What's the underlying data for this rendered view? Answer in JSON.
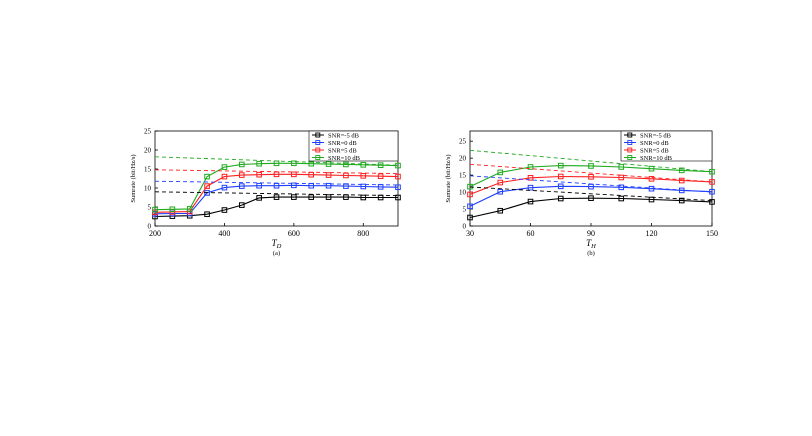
{
  "chart_data": [
    {
      "type": "line",
      "caption": "(a)",
      "xlabel": "T_D",
      "xlabel_main": "T",
      "xlabel_sub": "D",
      "ylabel": "Sumrate (bit/Hz/s)",
      "xlim": [
        200,
        900
      ],
      "ylim": [
        0,
        25
      ],
      "xticks": [
        200,
        400,
        600,
        800
      ],
      "xtick_labels": [
        "200",
        "400",
        "600",
        "800"
      ],
      "yticks": [
        0,
        5,
        10,
        15,
        20,
        25
      ],
      "ytick_labels": [
        "0",
        "5",
        "10",
        "15",
        "20",
        "25"
      ],
      "grid": false,
      "legend_position": "top-right",
      "x": [
        200,
        250,
        300,
        350,
        400,
        450,
        500,
        550,
        600,
        650,
        700,
        750,
        800,
        850,
        900
      ],
      "series": [
        {
          "name": "SNR=-5 dB",
          "color": "#000000",
          "style": "solid",
          "marker": "square",
          "values": [
            2.5,
            2.6,
            2.7,
            3.1,
            4.2,
            5.5,
            7.4,
            7.6,
            7.6,
            7.6,
            7.6,
            7.6,
            7.5,
            7.5,
            7.5
          ]
        },
        {
          "name": "SNR=0 dB",
          "color": "#1f3fff",
          "style": "solid",
          "marker": "square",
          "values": [
            3.2,
            3.3,
            3.3,
            8.7,
            10.1,
            10.5,
            10.6,
            10.6,
            10.7,
            10.6,
            10.6,
            10.5,
            10.4,
            10.3,
            10.2
          ]
        },
        {
          "name": "SNR=5 dB",
          "color": "#ff1f1f",
          "style": "solid",
          "marker": "square",
          "values": [
            3.6,
            3.7,
            3.8,
            10.5,
            13.0,
            13.4,
            13.5,
            13.6,
            13.6,
            13.5,
            13.4,
            13.3,
            13.2,
            13.1,
            13.0
          ]
        },
        {
          "name": "SNR=10 dB",
          "color": "#1faa1f",
          "style": "solid",
          "marker": "square",
          "values": [
            4.3,
            4.4,
            4.5,
            13.0,
            15.5,
            16.2,
            16.4,
            16.5,
            16.5,
            16.4,
            16.3,
            16.2,
            16.1,
            16.0,
            15.9
          ]
        },
        {
          "color": "#000000",
          "style": "dashed",
          "x": [
            200,
            900
          ],
          "values": [
            9.0,
            8.0
          ]
        },
        {
          "color": "#1f3fff",
          "style": "dashed",
          "x": [
            200,
            900
          ],
          "values": [
            11.8,
            10.8
          ]
        },
        {
          "color": "#ff1f1f",
          "style": "dashed",
          "x": [
            200,
            900
          ],
          "values": [
            14.8,
            13.8
          ]
        },
        {
          "color": "#1faa1f",
          "style": "dashed",
          "x": [
            200,
            900
          ],
          "values": [
            18.2,
            16.0
          ]
        }
      ]
    },
    {
      "type": "line",
      "caption": "(b)",
      "xlabel": "T_H",
      "xlabel_main": "T",
      "xlabel_sub": "H",
      "ylabel": "Sumrate (bit/Hz/s)",
      "xlim": [
        30,
        150
      ],
      "ylim": [
        0,
        28
      ],
      "xticks": [
        30,
        60,
        90,
        120,
        150
      ],
      "xtick_labels": [
        "30",
        "60",
        "90",
        "120",
        "150"
      ],
      "yticks": [
        0,
        5,
        10,
        15,
        20,
        25
      ],
      "ytick_labels": [
        "0",
        "5",
        "10",
        "15",
        "20",
        "25"
      ],
      "grid": false,
      "legend_position": "top-right",
      "x": [
        30,
        45,
        60,
        75,
        90,
        105,
        120,
        135,
        150
      ],
      "series": [
        {
          "name": "SNR=-5 dB",
          "color": "#000000",
          "style": "solid",
          "marker": "square",
          "values": [
            2.5,
            4.5,
            7.2,
            8.1,
            8.2,
            8.1,
            7.8,
            7.5,
            7.1
          ]
        },
        {
          "name": "SNR=0 dB",
          "color": "#1f3fff",
          "style": "solid",
          "marker": "square",
          "values": [
            5.8,
            10.1,
            11.3,
            11.7,
            11.6,
            11.4,
            11.0,
            10.5,
            10.1
          ]
        },
        {
          "name": "SNR=5 dB",
          "color": "#ff1f1f",
          "style": "solid",
          "marker": "square",
          "values": [
            9.3,
            12.8,
            14.2,
            14.6,
            14.5,
            14.3,
            13.9,
            13.4,
            13.0
          ]
        },
        {
          "name": "SNR=10 dB",
          "color": "#1faa1f",
          "style": "solid",
          "marker": "square",
          "values": [
            11.6,
            15.8,
            17.4,
            17.8,
            17.7,
            17.4,
            16.9,
            16.4,
            16.0
          ]
        },
        {
          "color": "#000000",
          "style": "dashed",
          "x": [
            30,
            150
          ],
          "values": [
            11.5,
            7.5
          ]
        },
        {
          "color": "#1f3fff",
          "style": "dashed",
          "x": [
            30,
            150
          ],
          "values": [
            14.8,
            10.0
          ]
        },
        {
          "color": "#ff1f1f",
          "style": "dashed",
          "x": [
            30,
            150
          ],
          "values": [
            18.2,
            13.0
          ]
        },
        {
          "color": "#1faa1f",
          "style": "dashed",
          "x": [
            30,
            150
          ],
          "values": [
            22.3,
            16.0
          ]
        }
      ]
    }
  ]
}
